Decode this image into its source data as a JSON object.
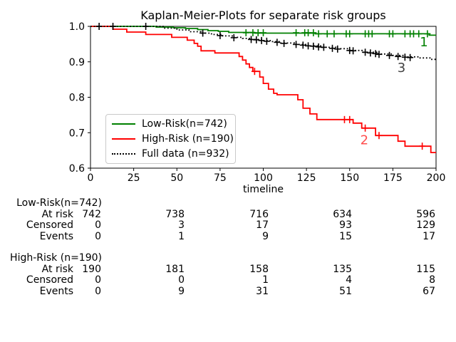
{
  "title": "Kaplan-Meier-Plots for separate risk groups",
  "chart_data": {
    "type": "line",
    "subtype": "kaplan-meier-step",
    "title": "Kaplan-Meier-Plots for separate risk groups",
    "xlabel": "timeline",
    "ylabel": "",
    "xlim": [
      0,
      200
    ],
    "ylim": [
      0.6,
      1.0
    ],
    "xticks": [
      0,
      25,
      50,
      75,
      100,
      125,
      150,
      175,
      200
    ],
    "yticks": [
      "1.0",
      "0.9",
      "0.8",
      "0.7",
      "0.6"
    ],
    "grid": false,
    "legend_position": "center-left",
    "series": [
      {
        "name": "Low-Risk(n=742)",
        "color": "#008000",
        "style": "solid",
        "points": [
          [
            0,
            1.0
          ],
          [
            38,
            0.998
          ],
          [
            48,
            0.996
          ],
          [
            55,
            0.994
          ],
          [
            62,
            0.991
          ],
          [
            68,
            0.988
          ],
          [
            74,
            0.986
          ],
          [
            80,
            0.983
          ],
          [
            95,
            0.981
          ],
          [
            130,
            0.979
          ],
          [
            196,
            0.975
          ]
        ],
        "censors": [
          [
            90,
            0.982
          ],
          [
            94,
            0.982
          ],
          [
            97,
            0.982
          ],
          [
            100,
            0.982
          ],
          [
            119,
            0.982
          ],
          [
            124,
            0.982
          ],
          [
            126,
            0.982
          ],
          [
            129,
            0.982
          ],
          [
            132,
            0.979
          ],
          [
            137,
            0.979
          ],
          [
            141,
            0.979
          ],
          [
            148,
            0.979
          ],
          [
            150,
            0.979
          ],
          [
            159,
            0.979
          ],
          [
            161,
            0.979
          ],
          [
            163,
            0.979
          ],
          [
            173,
            0.979
          ],
          [
            175,
            0.979
          ],
          [
            182,
            0.979
          ],
          [
            185,
            0.979
          ],
          [
            187,
            0.979
          ],
          [
            190,
            0.979
          ],
          [
            195,
            0.979
          ]
        ]
      },
      {
        "name": "High-Risk (n=190)",
        "color": "#ff0000",
        "style": "solid",
        "points": [
          [
            0,
            1.0
          ],
          [
            13,
            0.992
          ],
          [
            21,
            0.984
          ],
          [
            32,
            0.977
          ],
          [
            47,
            0.969
          ],
          [
            56,
            0.961
          ],
          [
            60,
            0.952
          ],
          [
            62,
            0.944
          ],
          [
            64,
            0.931
          ],
          [
            72,
            0.925
          ],
          [
            86,
            0.915
          ],
          [
            88,
            0.905
          ],
          [
            90,
            0.894
          ],
          [
            92,
            0.884
          ],
          [
            94,
            0.873
          ],
          [
            98,
            0.857
          ],
          [
            100,
            0.839
          ],
          [
            103,
            0.823
          ],
          [
            106,
            0.811
          ],
          [
            108,
            0.807
          ],
          [
            120,
            0.793
          ],
          [
            123,
            0.769
          ],
          [
            127,
            0.753
          ],
          [
            131,
            0.737
          ],
          [
            152,
            0.727
          ],
          [
            157,
            0.713
          ],
          [
            165,
            0.692
          ],
          [
            178,
            0.676
          ],
          [
            182,
            0.662
          ],
          [
            197,
            0.644
          ]
        ],
        "censors": [
          [
            95,
            0.873
          ],
          [
            147,
            0.737
          ],
          [
            150,
            0.737
          ],
          [
            159,
            0.713
          ],
          [
            167,
            0.692
          ],
          [
            192,
            0.662
          ]
        ]
      },
      {
        "name": "Full data (n=932)",
        "color": "#000000",
        "style": "dotted",
        "points": [
          [
            0,
            1.0
          ],
          [
            42,
            0.995
          ],
          [
            50,
            0.99
          ],
          [
            57,
            0.985
          ],
          [
            64,
            0.981
          ],
          [
            70,
            0.977
          ],
          [
            76,
            0.973
          ],
          [
            82,
            0.969
          ],
          [
            88,
            0.966
          ],
          [
            93,
            0.963
          ],
          [
            99,
            0.96
          ],
          [
            104,
            0.957
          ],
          [
            110,
            0.953
          ],
          [
            118,
            0.949
          ],
          [
            126,
            0.945
          ],
          [
            134,
            0.941
          ],
          [
            142,
            0.937
          ],
          [
            150,
            0.932
          ],
          [
            158,
            0.927
          ],
          [
            166,
            0.922
          ],
          [
            174,
            0.918
          ],
          [
            182,
            0.914
          ],
          [
            190,
            0.911
          ],
          [
            197,
            0.907
          ]
        ],
        "censors": [
          [
            5,
            1.0
          ],
          [
            13,
            1.0
          ],
          [
            32,
            1.0
          ],
          [
            65,
            0.981
          ],
          [
            75,
            0.974
          ],
          [
            83,
            0.968
          ],
          [
            93,
            0.963
          ],
          [
            96,
            0.962
          ],
          [
            99,
            0.96
          ],
          [
            102,
            0.958
          ],
          [
            108,
            0.955
          ],
          [
            112,
            0.952
          ],
          [
            119,
            0.949
          ],
          [
            123,
            0.947
          ],
          [
            126,
            0.945
          ],
          [
            129,
            0.944
          ],
          [
            132,
            0.942
          ],
          [
            135,
            0.941
          ],
          [
            140,
            0.938
          ],
          [
            143,
            0.936
          ],
          [
            150,
            0.932
          ],
          [
            152,
            0.931
          ],
          [
            159,
            0.927
          ],
          [
            162,
            0.925
          ],
          [
            165,
            0.923
          ],
          [
            167,
            0.921
          ],
          [
            173,
            0.918
          ],
          [
            178,
            0.915
          ],
          [
            182,
            0.913
          ],
          [
            185,
            0.912
          ]
        ]
      }
    ],
    "annotations": [
      {
        "text": "1",
        "x": 193,
        "y": 0.956,
        "color": "#008000"
      },
      {
        "text": "3",
        "x": 180,
        "y": 0.883,
        "color": "#404040"
      },
      {
        "text": "2",
        "x": 158.5,
        "y": 0.679,
        "color": "#ff4d4d"
      }
    ]
  },
  "legend": {
    "items": [
      {
        "label": "Low-Risk(n=742)",
        "color": "#008000",
        "style": "solid"
      },
      {
        "label": "High-Risk (n=190)",
        "color": "#ff0000",
        "style": "solid"
      },
      {
        "label": "Full data (n=932)",
        "color": "#000000",
        "style": "dotted"
      }
    ]
  },
  "risk_tables": [
    {
      "header": "Low-Risk(n=742)",
      "rows": [
        {
          "label": "At risk",
          "values": [
            "742",
            "738",
            "716",
            "634",
            "596"
          ]
        },
        {
          "label": "Censored",
          "values": [
            "0",
            "3",
            "17",
            "93",
            "129"
          ]
        },
        {
          "label": "Events",
          "values": [
            "0",
            "1",
            "9",
            "15",
            "17"
          ]
        }
      ]
    },
    {
      "header": "High-Risk (n=190)",
      "rows": [
        {
          "label": "At risk",
          "values": [
            "190",
            "181",
            "158",
            "135",
            "115"
          ]
        },
        {
          "label": "Censored",
          "values": [
            "0",
            "0",
            "1",
            "4",
            "8"
          ]
        },
        {
          "label": "Events",
          "values": [
            "0",
            "9",
            "31",
            "51",
            "67"
          ]
        }
      ]
    }
  ]
}
